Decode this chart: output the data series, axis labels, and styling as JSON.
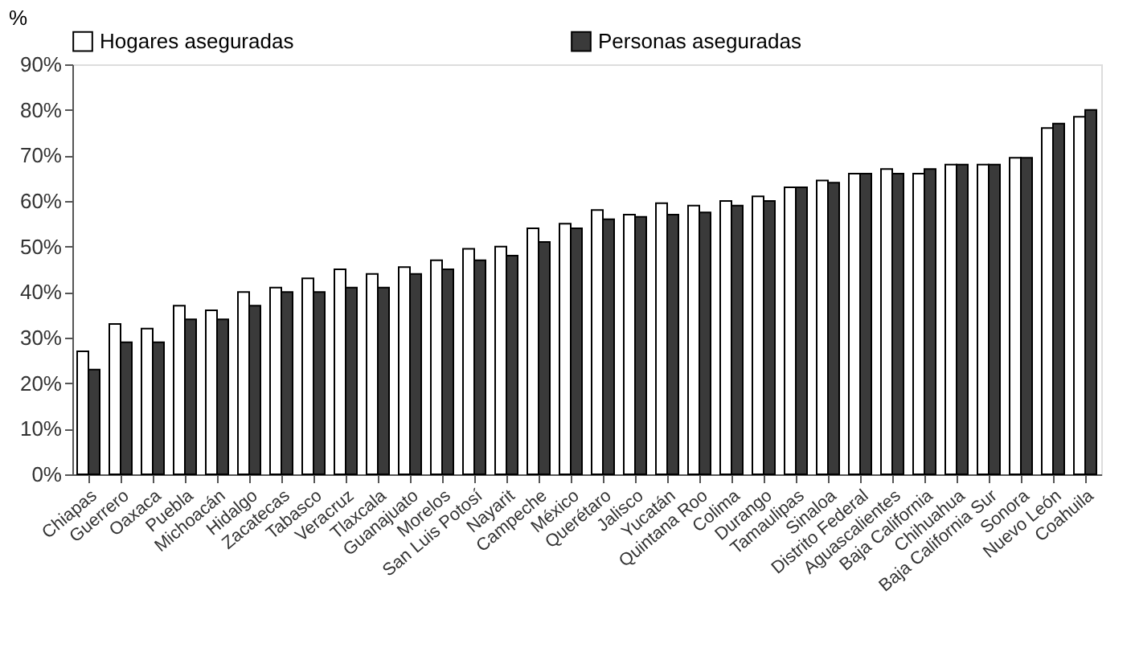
{
  "chart_data": {
    "type": "bar",
    "ylabel": "%",
    "legend": "top",
    "grid": false,
    "categories": [
      "Chiapas",
      "Guerrero",
      "Oaxaca",
      "Puebla",
      "Michoacán",
      "Hidalgo",
      "Zacatecas",
      "Tabasco",
      "Veracruz",
      "Tlaxcala",
      "Guanajuato",
      "Morelos",
      "San Luis Potosí",
      "Nayarit",
      "Campeche",
      "México",
      "Querétaro",
      "Jalisco",
      "Yucatán",
      "Quintana Roo",
      "Colima",
      "Durango",
      "Tamaulipas",
      "Sinaloa",
      "Distrito Federal",
      "Aguascalientes",
      "Baja California",
      "Chihuahua",
      "Baja California Sur",
      "Sonora",
      "Nuevo León",
      "Coahuila"
    ],
    "series": [
      {
        "name": "Hogares aseguradas",
        "color": "#ffffff",
        "values": [
          27,
          33,
          32,
          37,
          36,
          40,
          41,
          43,
          45,
          44,
          45.5,
          47,
          49.5,
          50,
          54,
          55,
          58,
          57,
          59.5,
          59,
          60,
          61,
          63,
          64.5,
          66,
          67,
          66,
          68,
          68,
          69.5,
          76,
          78.5
        ]
      },
      {
        "name": "Personas aseguradas",
        "color": "#3a3a3a",
        "values": [
          23,
          29,
          29,
          34,
          34,
          37,
          40,
          40,
          41,
          41,
          44,
          45,
          47,
          48,
          51,
          54,
          56,
          56.5,
          57,
          57.5,
          59,
          60,
          63,
          64,
          66,
          66,
          67,
          68,
          68,
          69.5,
          77,
          80
        ]
      }
    ],
    "ylim": [
      0,
      90
    ],
    "yticks": [
      {
        "value": 0,
        "label": "0%"
      },
      {
        "value": 10,
        "label": "10%"
      },
      {
        "value": 20,
        "label": "20%"
      },
      {
        "value": 30,
        "label": "30%"
      },
      {
        "value": 40,
        "label": "40%"
      },
      {
        "value": 50,
        "label": "50%"
      },
      {
        "value": 60,
        "label": "60%"
      },
      {
        "value": 70,
        "label": "70%"
      },
      {
        "value": 80,
        "label": "80%"
      },
      {
        "value": 90,
        "label": "90%"
      }
    ]
  }
}
